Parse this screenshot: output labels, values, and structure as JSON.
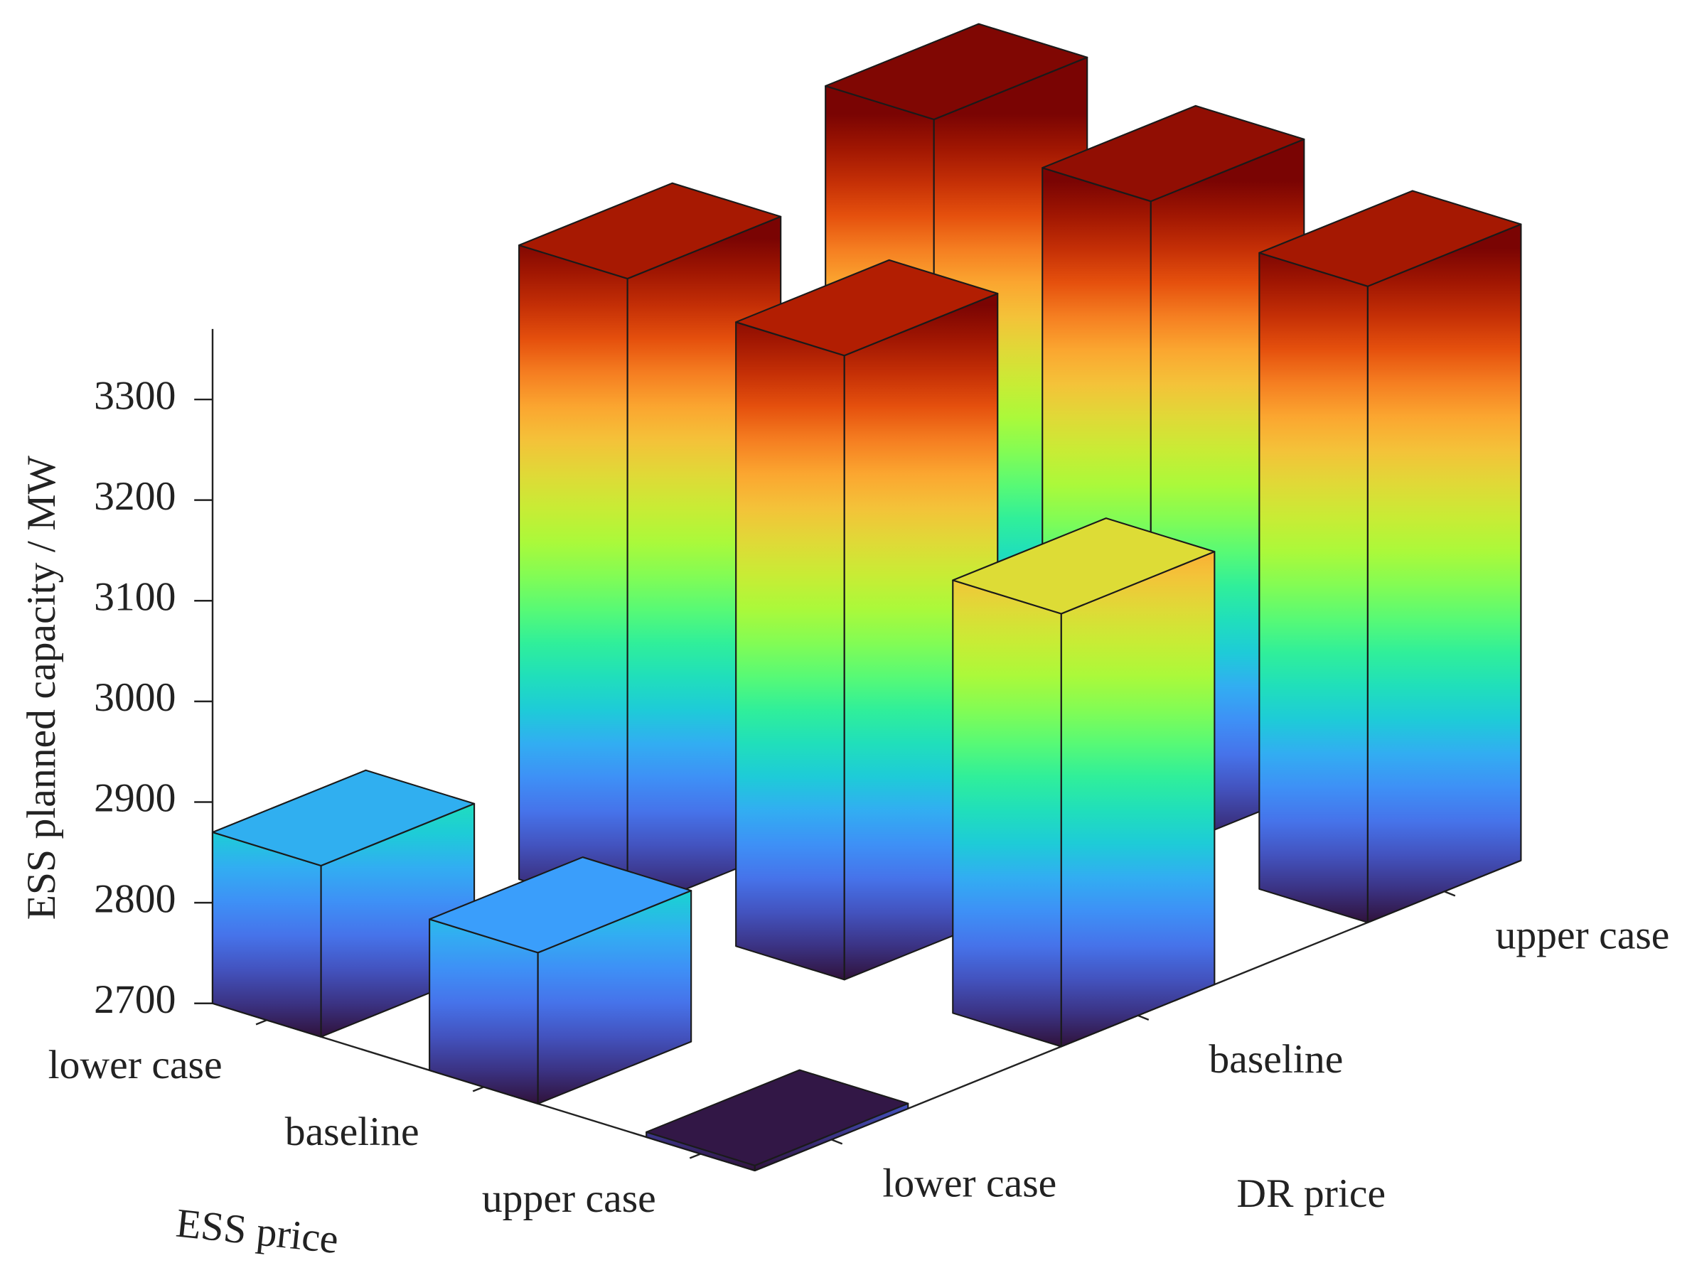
{
  "chart_data": {
    "type": "bar3",
    "zlabel": "ESS planned capacity / MW",
    "xlabel": "ESS price",
    "ylabel": "DR price",
    "x_categories": [
      "lower case",
      "baseline",
      "upper case"
    ],
    "y_categories": [
      "lower case",
      "baseline",
      "upper case"
    ],
    "values": [
      [
        2870,
        3330,
        3365
      ],
      [
        2850,
        3320,
        3350
      ],
      [
        2705,
        3130,
        3332
      ]
    ],
    "zlim": [
      2700,
      3370
    ],
    "zticks": [
      2700,
      2800,
      2900,
      3000,
      3100,
      3200,
      3300
    ],
    "colormap": "turbo"
  }
}
